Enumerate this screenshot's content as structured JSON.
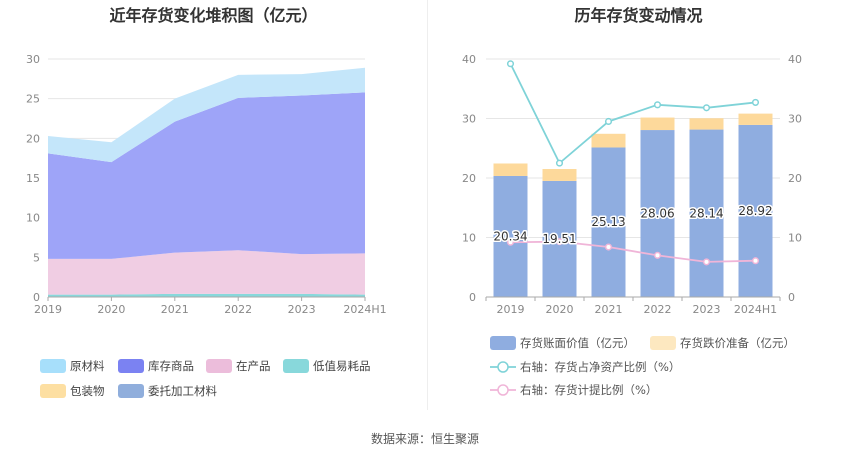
{
  "left_title": "近年存货变化堆积图（亿元）",
  "right_title": "历年存货变动情况",
  "source": "数据来源：恒生聚源",
  "chart_data": [
    {
      "type": "area",
      "stacked": true,
      "title": "近年存货变化堆积图（亿元）",
      "categories": [
        "2019",
        "2020",
        "2021",
        "2022",
        "2023",
        "2024H1"
      ],
      "ylim": [
        0,
        30
      ],
      "yticks": [
        "0",
        "5",
        "10",
        "15",
        "20",
        "25",
        "30"
      ],
      "grid": true,
      "legend_position": "bottom",
      "series": [
        {
          "name": "低值易耗品",
          "color": "#88d8db",
          "values": [
            0.3,
            0.3,
            0.4,
            0.4,
            0.4,
            0.3
          ]
        },
        {
          "name": "在产品",
          "color": "#f0cde3",
          "values": [
            4.5,
            4.5,
            5.2,
            5.5,
            5.0,
            5.2
          ]
        },
        {
          "name": "库存商品",
          "color": "#9ea4f8",
          "values": [
            13.3,
            12.2,
            16.5,
            19.2,
            20.0,
            20.3
          ]
        },
        {
          "name": "原材料",
          "color": "#c4e6fa",
          "values": [
            2.2,
            2.5,
            2.9,
            2.9,
            2.7,
            3.1
          ]
        },
        {
          "name": "包装物",
          "color": "#fddfa2",
          "values": [
            0,
            0,
            0,
            0,
            0,
            0
          ]
        },
        {
          "name": "委托加工材料",
          "color": "#90aedc",
          "values": [
            0,
            0,
            0,
            0,
            0,
            0
          ]
        }
      ],
      "legend": [
        {
          "name": "原材料",
          "color": "#a7dffb"
        },
        {
          "name": "库存商品",
          "color": "#7b82f2"
        },
        {
          "name": "在产品",
          "color": "#ecbddb"
        },
        {
          "name": "低值易耗品",
          "color": "#88d8db"
        },
        {
          "name": "包装物",
          "color": "#fddfa2"
        },
        {
          "name": "委托加工材料",
          "color": "#90aedc"
        }
      ]
    },
    {
      "type": "bar",
      "title": "历年存货变动情况",
      "categories": [
        "2019",
        "2020",
        "2021",
        "2022",
        "2023",
        "2024H1"
      ],
      "ylim": [
        0,
        40
      ],
      "yticks": [
        "0",
        "10",
        "20",
        "30",
        "40"
      ],
      "y2lim": [
        0,
        40
      ],
      "y2ticks": [
        "0",
        "10",
        "20",
        "30",
        "40"
      ],
      "grid": true,
      "legend_position": "bottom",
      "series": [
        {
          "name": "存货账面价值（亿元）",
          "type": "bar",
          "color": "#8fade0",
          "values": [
            20.34,
            19.51,
            25.13,
            28.06,
            28.14,
            28.92
          ],
          "labels": [
            "20.34",
            "19.51",
            "25.13",
            "28.06",
            "28.14",
            "28.92"
          ]
        },
        {
          "name": "存货跌价准备（亿元）",
          "type": "bar-stack",
          "color": "#fdd99b",
          "values": [
            2.1,
            2.0,
            2.3,
            2.1,
            1.9,
            1.9
          ]
        },
        {
          "name": "右轴：存货占净资产比例（%）",
          "type": "line",
          "axis": "right",
          "color": "#7fd3d8",
          "values": [
            39.2,
            22.5,
            29.5,
            32.3,
            31.8,
            32.7
          ]
        },
        {
          "name": "右轴：存货计提比例（%）",
          "type": "line",
          "axis": "right",
          "color": "#f0b5d8",
          "values": [
            9.2,
            9.3,
            8.4,
            7.0,
            5.9,
            6.1
          ]
        }
      ]
    }
  ]
}
